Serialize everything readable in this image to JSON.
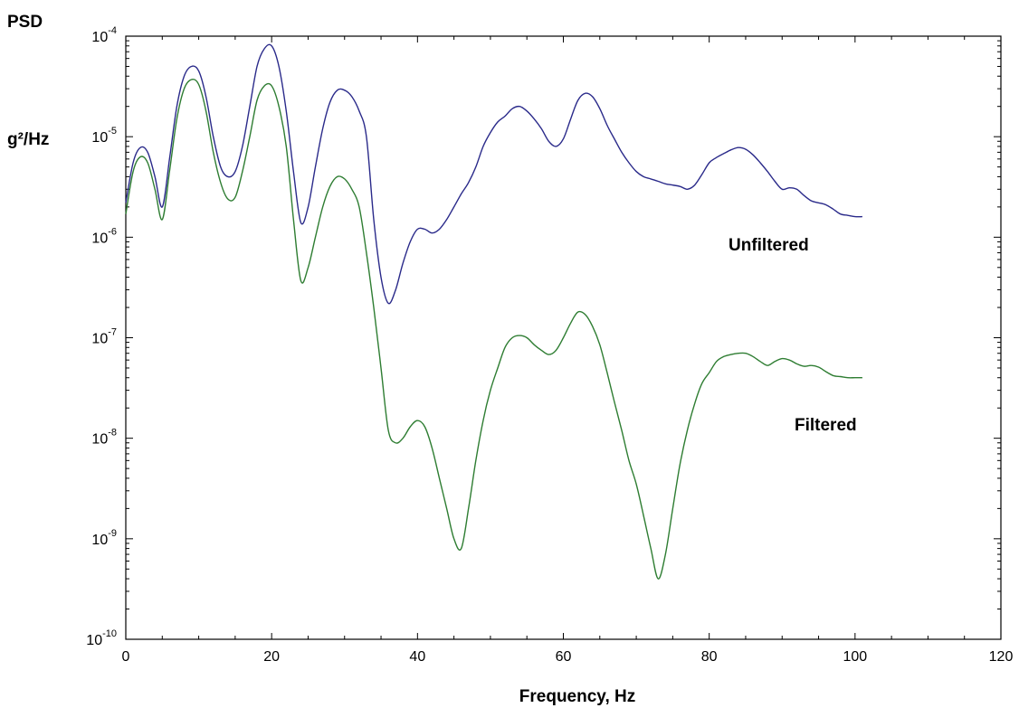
{
  "chart_data": {
    "type": "line",
    "title": "",
    "ylabel_top": "PSD",
    "ylabel_unit": "g²/Hz",
    "xlabel": "Frequency, Hz",
    "xlim": [
      0,
      120
    ],
    "ylim": [
      1e-10,
      0.0001
    ],
    "yscale": "log",
    "x_ticks": [
      0,
      20,
      40,
      60,
      80,
      100,
      120
    ],
    "x_tick_labels": [
      "0",
      "20",
      "40",
      "60",
      "80",
      "100",
      "120"
    ],
    "y_ticks": [
      -10,
      -9,
      -8,
      -7,
      -6,
      -5,
      -4
    ],
    "y_tick_base": "10",
    "y_tick_exponents": [
      "-10",
      "-9",
      "-8",
      "-7",
      "-6",
      "-5",
      "-4"
    ],
    "grid": false,
    "series": [
      {
        "name": "Unfiltered",
        "color": "#2a2a8a",
        "x": [
          0,
          1,
          2,
          3,
          4,
          5,
          6,
          7,
          8,
          9,
          10,
          11,
          12,
          13,
          14,
          15,
          16,
          17,
          18,
          19,
          20,
          21,
          22,
          23,
          24,
          25,
          26,
          27,
          28,
          29,
          30,
          31,
          32,
          33,
          34,
          35,
          36,
          37,
          38,
          39,
          40,
          41,
          42,
          43,
          44,
          45,
          46,
          47,
          48,
          49,
          50,
          51,
          52,
          53,
          54,
          55,
          56,
          57,
          58,
          59,
          60,
          61,
          62,
          63,
          64,
          65,
          66,
          67,
          68,
          69,
          70,
          71,
          72,
          73,
          74,
          75,
          76,
          77,
          78,
          79,
          80,
          81,
          82,
          83,
          84,
          85,
          86,
          87,
          88,
          89,
          90,
          91,
          92,
          93,
          94,
          95,
          96,
          97,
          98,
          99,
          100,
          101
        ],
        "y": [
          2.2e-06,
          5.5e-06,
          7.8e-06,
          7e-06,
          4e-06,
          2e-06,
          6e-06,
          2e-05,
          4e-05,
          5e-05,
          4.5e-05,
          2.5e-05,
          1e-05,
          5e-06,
          4e-06,
          4.5e-06,
          8e-06,
          2e-05,
          5e-05,
          7.5e-05,
          8e-05,
          5e-05,
          1.8e-05,
          4.5e-06,
          1.4e-06,
          2e-06,
          5e-06,
          1.2e-05,
          2.2e-05,
          2.9e-05,
          2.9e-05,
          2.5e-05,
          1.8e-05,
          1e-05,
          1.5e-06,
          4e-07,
          2.2e-07,
          3e-07,
          5.5e-07,
          9e-07,
          1.2e-06,
          1.2e-06,
          1.1e-06,
          1.2e-06,
          1.5e-06,
          2e-06,
          2.7e-06,
          3.5e-06,
          5e-06,
          8e-06,
          1.1e-05,
          1.4e-05,
          1.6e-05,
          1.9e-05,
          2e-05,
          1.8e-05,
          1.5e-05,
          1.2e-05,
          9e-06,
          8e-06,
          9.5e-06,
          1.5e-05,
          2.3e-05,
          2.7e-05,
          2.5e-05,
          1.9e-05,
          1.3e-05,
          9.5e-06,
          7e-06,
          5.5e-06,
          4.5e-06,
          4e-06,
          3.8e-06,
          3.6e-06,
          3.4e-06,
          3.3e-06,
          3.2e-06,
          3e-06,
          3.3e-06,
          4.2e-06,
          5.5e-06,
          6.2e-06,
          6.8e-06,
          7.4e-06,
          7.8e-06,
          7.5e-06,
          6.6e-06,
          5.5e-06,
          4.5e-06,
          3.6e-06,
          3e-06,
          3.1e-06,
          3e-06,
          2.6e-06,
          2.3e-06,
          2.2e-06,
          2.1e-06,
          1.9e-06,
          1.7e-06,
          1.65e-06,
          1.6e-06,
          1.6e-06
        ]
      },
      {
        "name": "Filtered",
        "color": "#2e7d32",
        "x": [
          0,
          1,
          2,
          3,
          4,
          5,
          6,
          7,
          8,
          9,
          10,
          11,
          12,
          13,
          14,
          15,
          16,
          17,
          18,
          19,
          20,
          21,
          22,
          23,
          24,
          25,
          26,
          27,
          28,
          29,
          30,
          31,
          32,
          33,
          34,
          35,
          36,
          37,
          38,
          39,
          40,
          41,
          42,
          43,
          44,
          45,
          46,
          47,
          48,
          49,
          50,
          51,
          52,
          53,
          54,
          55,
          56,
          57,
          58,
          59,
          60,
          61,
          62,
          63,
          64,
          65,
          66,
          67,
          68,
          69,
          70,
          71,
          72,
          73,
          74,
          75,
          76,
          77,
          78,
          79,
          80,
          81,
          82,
          83,
          84,
          85,
          86,
          87,
          88,
          89,
          90,
          91,
          92,
          93,
          94,
          95,
          96,
          97,
          98,
          99,
          100,
          101
        ],
        "y": [
          1.7e-06,
          4.5e-06,
          6.3e-06,
          5.5e-06,
          3e-06,
          1.5e-06,
          4.5e-06,
          1.5e-05,
          3e-05,
          3.7e-05,
          3.3e-05,
          1.8e-05,
          7e-06,
          3.5e-06,
          2.4e-06,
          2.5e-06,
          4.5e-06,
          1e-05,
          2.3e-05,
          3.2e-05,
          3.2e-05,
          2e-05,
          8e-06,
          1.5e-06,
          3.7e-07,
          5e-07,
          1e-06,
          2e-06,
          3.2e-06,
          4e-06,
          3.8e-06,
          3e-06,
          2e-06,
          7e-07,
          2e-07,
          5e-08,
          1.2e-08,
          9e-09,
          1e-08,
          1.3e-08,
          1.5e-08,
          1.3e-08,
          8e-09,
          4e-09,
          2e-09,
          1e-09,
          8e-10,
          2e-09,
          6e-09,
          1.5e-08,
          3e-08,
          5e-08,
          8e-08,
          1e-07,
          1.05e-07,
          1e-07,
          8.5e-08,
          7.5e-08,
          6.8e-08,
          7.5e-08,
          1e-07,
          1.4e-07,
          1.8e-07,
          1.7e-07,
          1.3e-07,
          8.5e-08,
          4.5e-08,
          2.3e-08,
          1.2e-08,
          6e-09,
          3.5e-09,
          1.7e-09,
          8e-10,
          4e-10,
          7e-10,
          2e-09,
          5.5e-09,
          1.2e-08,
          2.2e-08,
          3.5e-08,
          4.5e-08,
          5.8e-08,
          6.5e-08,
          6.8e-08,
          7e-08,
          7e-08,
          6.5e-08,
          5.8e-08,
          5.3e-08,
          5.8e-08,
          6.2e-08,
          6e-08,
          5.5e-08,
          5.2e-08,
          5.3e-08,
          5.1e-08,
          4.6e-08,
          4.2e-08,
          4.1e-08,
          4e-08,
          4e-08,
          4e-08
        ]
      }
    ]
  }
}
